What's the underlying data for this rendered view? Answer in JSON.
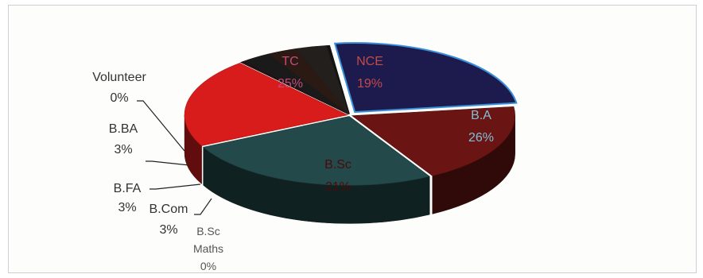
{
  "chart_data": {
    "type": "pie",
    "title": "",
    "legend": "none",
    "style": "3d-exploded",
    "slices": [
      {
        "label": "TC",
        "value": 25,
        "value_label": "25%",
        "color": "#1d1a4e",
        "text_color": "#c64a7a"
      },
      {
        "label": "NCE",
        "value": 19,
        "value_label": "19%",
        "color": "#6b1414",
        "text_color": "#c24a4a"
      },
      {
        "label": "B.A",
        "value": 26,
        "value_label": "26%",
        "color": "#23494a",
        "text_color": "#7ec0d8"
      },
      {
        "label": "B.Sc",
        "value": 21,
        "value_label": "21%",
        "color": "#d81c1c",
        "text_color": "#4a0b0b"
      },
      {
        "label": "B.Sc Maths",
        "value": 0,
        "value_label": "0%",
        "color": "#2a1010",
        "text_color": "#555555"
      },
      {
        "label": "B.Com",
        "value": 3,
        "value_label": "3%",
        "color": "#1a1a1a",
        "text_color": "#333333"
      },
      {
        "label": "B.FA",
        "value": 3,
        "value_label": "3%",
        "color": "#2b1a14",
        "text_color": "#333333"
      },
      {
        "label": "B.BA",
        "value": 3,
        "value_label": "3%",
        "color": "#231f1c",
        "text_color": "#333333"
      },
      {
        "label": "Volunteer",
        "value": 0,
        "value_label": "0%",
        "color": "#141414",
        "text_color": "#333333"
      }
    ]
  }
}
